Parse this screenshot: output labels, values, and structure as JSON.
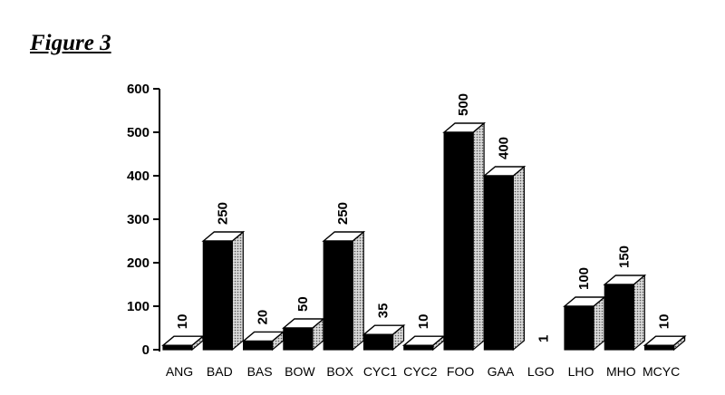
{
  "figure_label": "Figure 3",
  "chart_data": {
    "type": "bar",
    "title": "",
    "xlabel": "",
    "ylabel": "",
    "ylim": [
      0,
      600
    ],
    "yticks": [
      0,
      100,
      200,
      300,
      400,
      500,
      600
    ],
    "grid": false,
    "categories": [
      "ANG",
      "BAD",
      "BAS",
      "BOW",
      "BOX",
      "CYC1",
      "CYC2",
      "FOO",
      "GAA",
      "LGO",
      "LHO",
      "MHO",
      "MCYC"
    ],
    "values": [
      10,
      250,
      20,
      50,
      250,
      35,
      10,
      500,
      400,
      1,
      100,
      150,
      10
    ],
    "data_labels": [
      "10",
      "250",
      "20",
      "50",
      "250",
      "35",
      "10",
      "500",
      "400",
      "1",
      "100",
      "150",
      "10"
    ],
    "colors": {
      "front": "#000000",
      "top": "#ffffff",
      "side": "#bdbdbd",
      "stroke": "#000000"
    }
  }
}
